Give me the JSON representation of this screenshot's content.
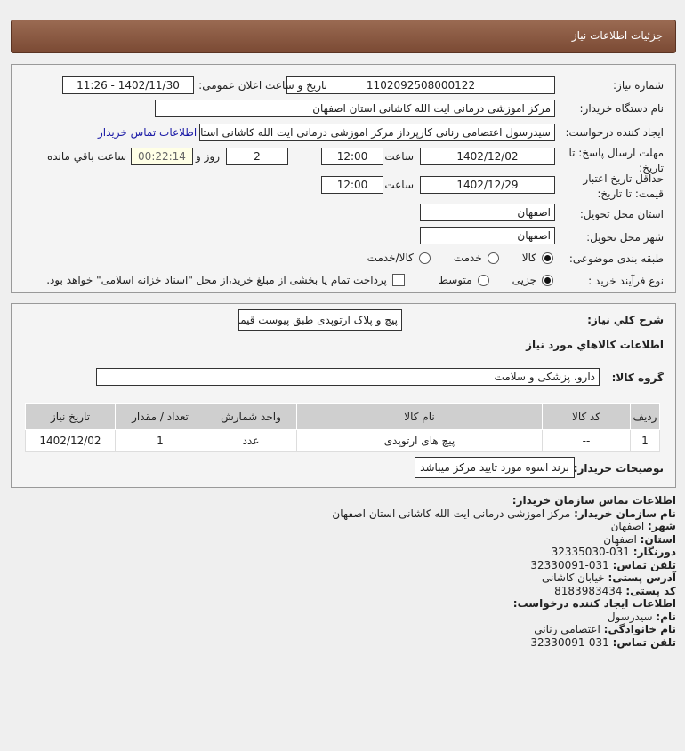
{
  "header": {
    "title": "جزئیات اطلاعات نیاز"
  },
  "form": {
    "need_number_label": "شماره نیاز:",
    "need_number": "1102092508000122",
    "announce_label": "تاریخ و ساعت اعلان عمومی:",
    "announce_value": "1402/11/30 - 11:26",
    "buyer_org_label": "نام دستگاه خریدار:",
    "buyer_org": "مرکز اموزشی درمانی ایت الله کاشانی استان اصفهان",
    "creator_label": "ایجاد کننده درخواست:",
    "creator": "سیدرسول اعتصامی رنانی کارپرداز مرکز اموزشی درمانی ایت الله کاشانی استان",
    "contact_link": "اطلاعات تماس خریدار",
    "deadline_label": "مهلت ارسال پاسخ: تا تاریخ:",
    "deadline_date": "1402/12/02",
    "time_label": "ساعت",
    "deadline_time": "12:00",
    "days": "2",
    "days_label": "روز و",
    "remaining": "00:22:14",
    "remaining_label": "ساعت باقي مانده",
    "validity_label": "حداقل تاریخ اعتبار قیمت: تا تاریخ:",
    "validity_date": "1402/12/29",
    "validity_time": "12:00",
    "province_label": "استان محل تحویل:",
    "province": "اصفهان",
    "city_label": "شهر محل تحویل:",
    "city": "اصفهان",
    "category_label": "طبقه بندی موضوعی:",
    "category_options": [
      "کالا",
      "خدمت",
      "کالا/خدمت"
    ],
    "category_selected": "کالا",
    "process_label": "نوع فرآیند خرید :",
    "process_options": [
      "جزیی",
      "متوسط"
    ],
    "process_selected": "جزیی",
    "treasury_text": "پرداخت تمام یا بخشی از مبلغ خرید،از محل \"اسناد خزانه اسلامی\" خواهد بود."
  },
  "details": {
    "summary_label": "شرح كلي نياز:",
    "summary": "پیچ و پلاک ارتوپدی طبق پیوست قیمت گذاری شود",
    "goods_title": "اطلاعات كالاهاي مورد نياز",
    "group_label": "گروه کالا:",
    "group": "دارو، پزشکی و سلامت",
    "columns": [
      "ردیف",
      "کد کالا",
      "نام کالا",
      "واحد شمارش",
      "تعداد / مقدار",
      "تاریخ نیاز"
    ],
    "rows": [
      [
        "1",
        "--",
        "پیچ های ارتوپدی",
        "عدد",
        "1",
        "1402/12/02"
      ]
    ],
    "buyer_notes_label": "توضیحات خریدار:",
    "buyer_notes": "برند اسوه مورد تایید مرکز میباشد"
  },
  "contact": {
    "title": "اطلاعات تماس سازمان خریدار:",
    "org_label": "نام سازمان خریدار:",
    "org": "مرکز اموزشی درمانی ایت الله کاشانی استان اصفهان",
    "city_label": "شهر:",
    "city": "اصفهان",
    "province_label": "استان:",
    "province": "اصفهان",
    "fax_label": "دورنگار:",
    "fax": "031-32335030",
    "phone_label": "تلفن تماس:",
    "phone": "031-32330091",
    "address_label": "آدرس پستی:",
    "address": "خیابان کاشانی",
    "postal_label": "کد پستی:",
    "postal": "8183983434",
    "creator_title": "اطلاعات ایجاد کننده درخواست:",
    "name_label": "نام:",
    "name": "سیدرسول",
    "family_label": "نام خانوادگی:",
    "family": "اعتصامی رنانی",
    "creator_phone_label": "تلفن تماس:",
    "creator_phone": "031-32330091"
  }
}
